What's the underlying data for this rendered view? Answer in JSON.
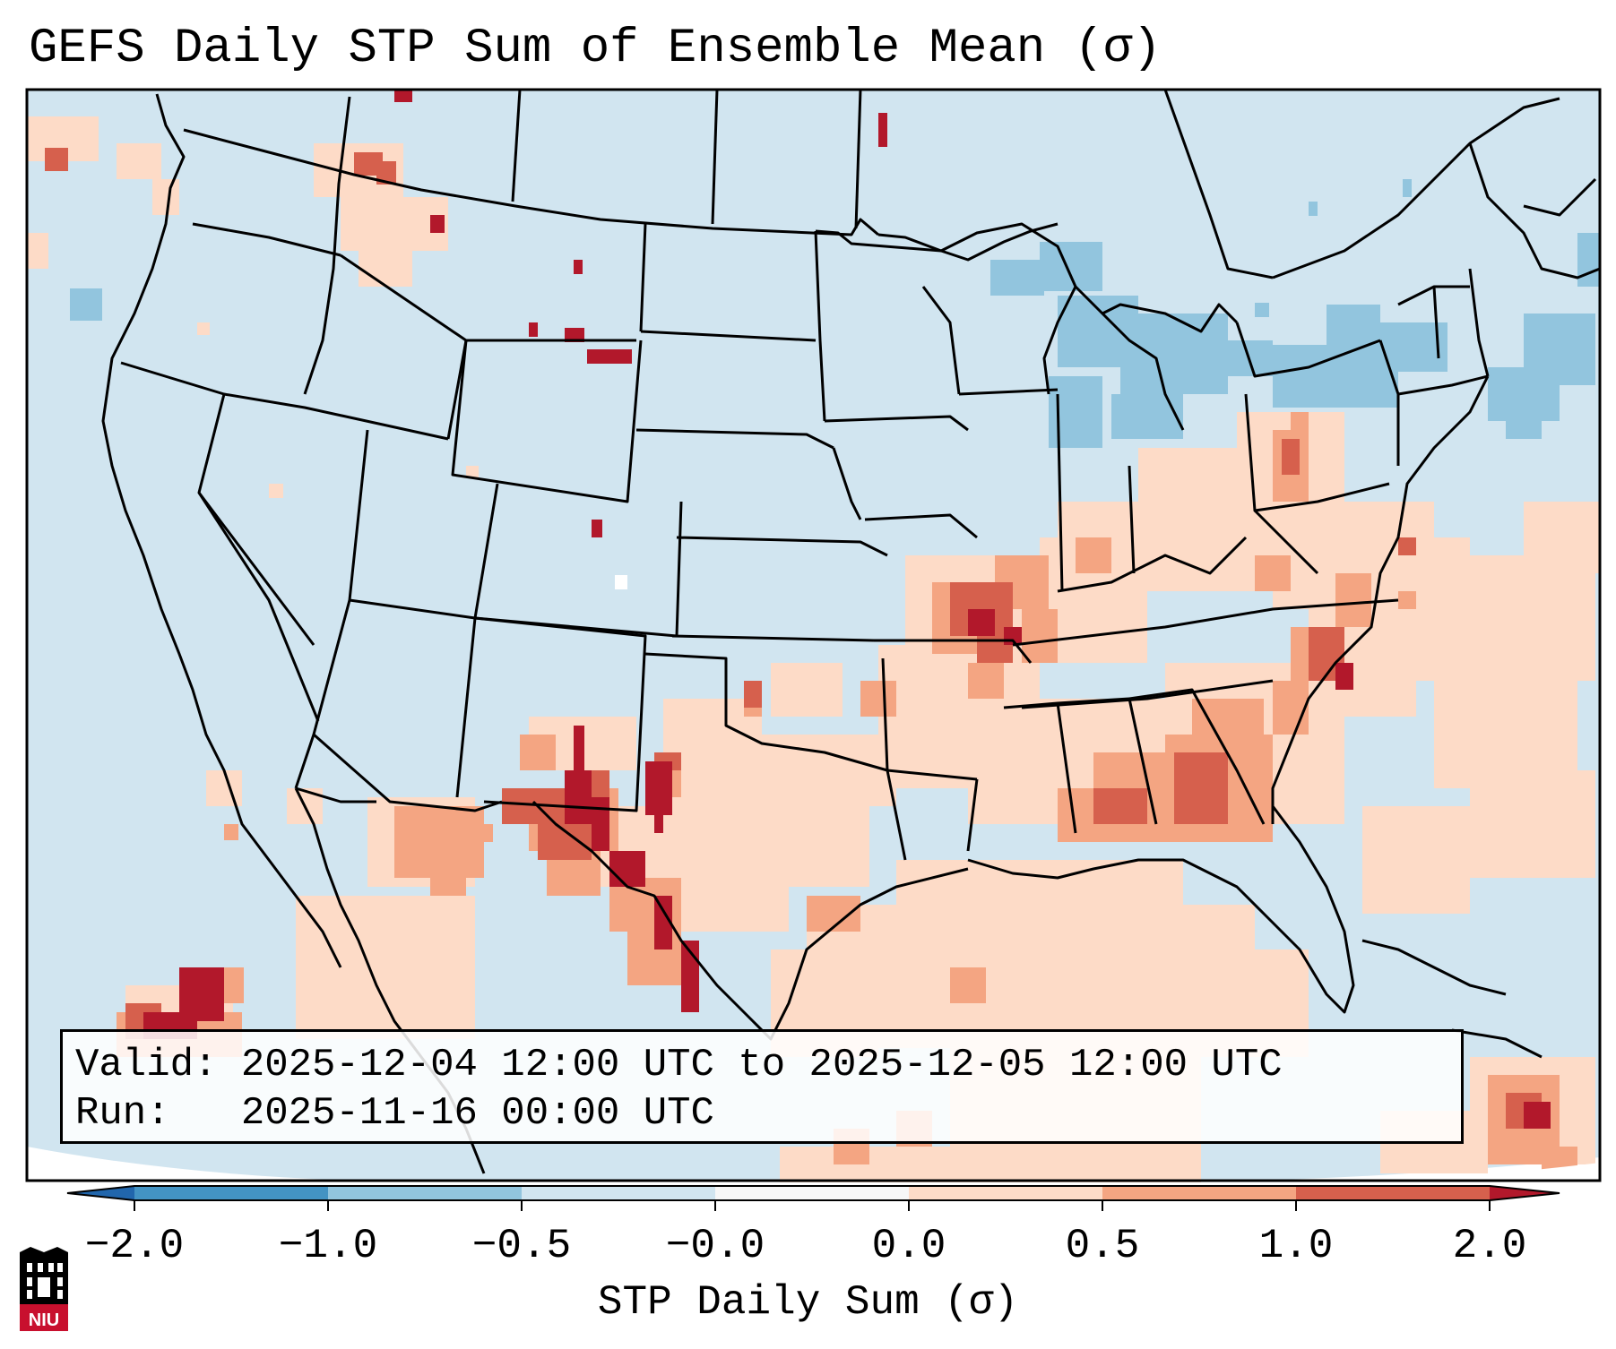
{
  "title": "GEFS Daily STP Sum of Ensemble Mean (σ)",
  "info": {
    "valid_label": "Valid:",
    "valid_text": "2025-12-04 12:00 UTC to 2025-12-05 12:00 UTC",
    "run_label": "Run:",
    "run_text": "2025-11-16 00:00 UTC"
  },
  "colorbar": {
    "label": "STP Daily Sum (σ)",
    "ticks": [
      "−2.0",
      "−1.0",
      "−0.5",
      "−0.0",
      "0.0",
      "0.5",
      "1.0",
      "2.0"
    ],
    "bins": [
      {
        "range": "-2.0 to -1.0",
        "color": "#4393c3"
      },
      {
        "range": "-1.0 to -0.5",
        "color": "#92c5de"
      },
      {
        "range": "-0.5 to -0.0",
        "color": "#d1e5f0"
      },
      {
        "range": "-0.0 to 0.0",
        "color": "#f7f7f7"
      },
      {
        "range": "0.0 to 0.5",
        "color": "#fddbc7"
      },
      {
        "range": "0.5 to 1.0",
        "color": "#f4a582"
      },
      {
        "range": "1.0 to 2.0",
        "color": "#d6604d"
      }
    ],
    "under_color": "#2166ac",
    "over_color": "#b2182b"
  },
  "map": {
    "background_color": "#d1e5f0",
    "region": "Continental United States"
  },
  "logo": {
    "text": "NIU",
    "color": "#c8102e"
  }
}
